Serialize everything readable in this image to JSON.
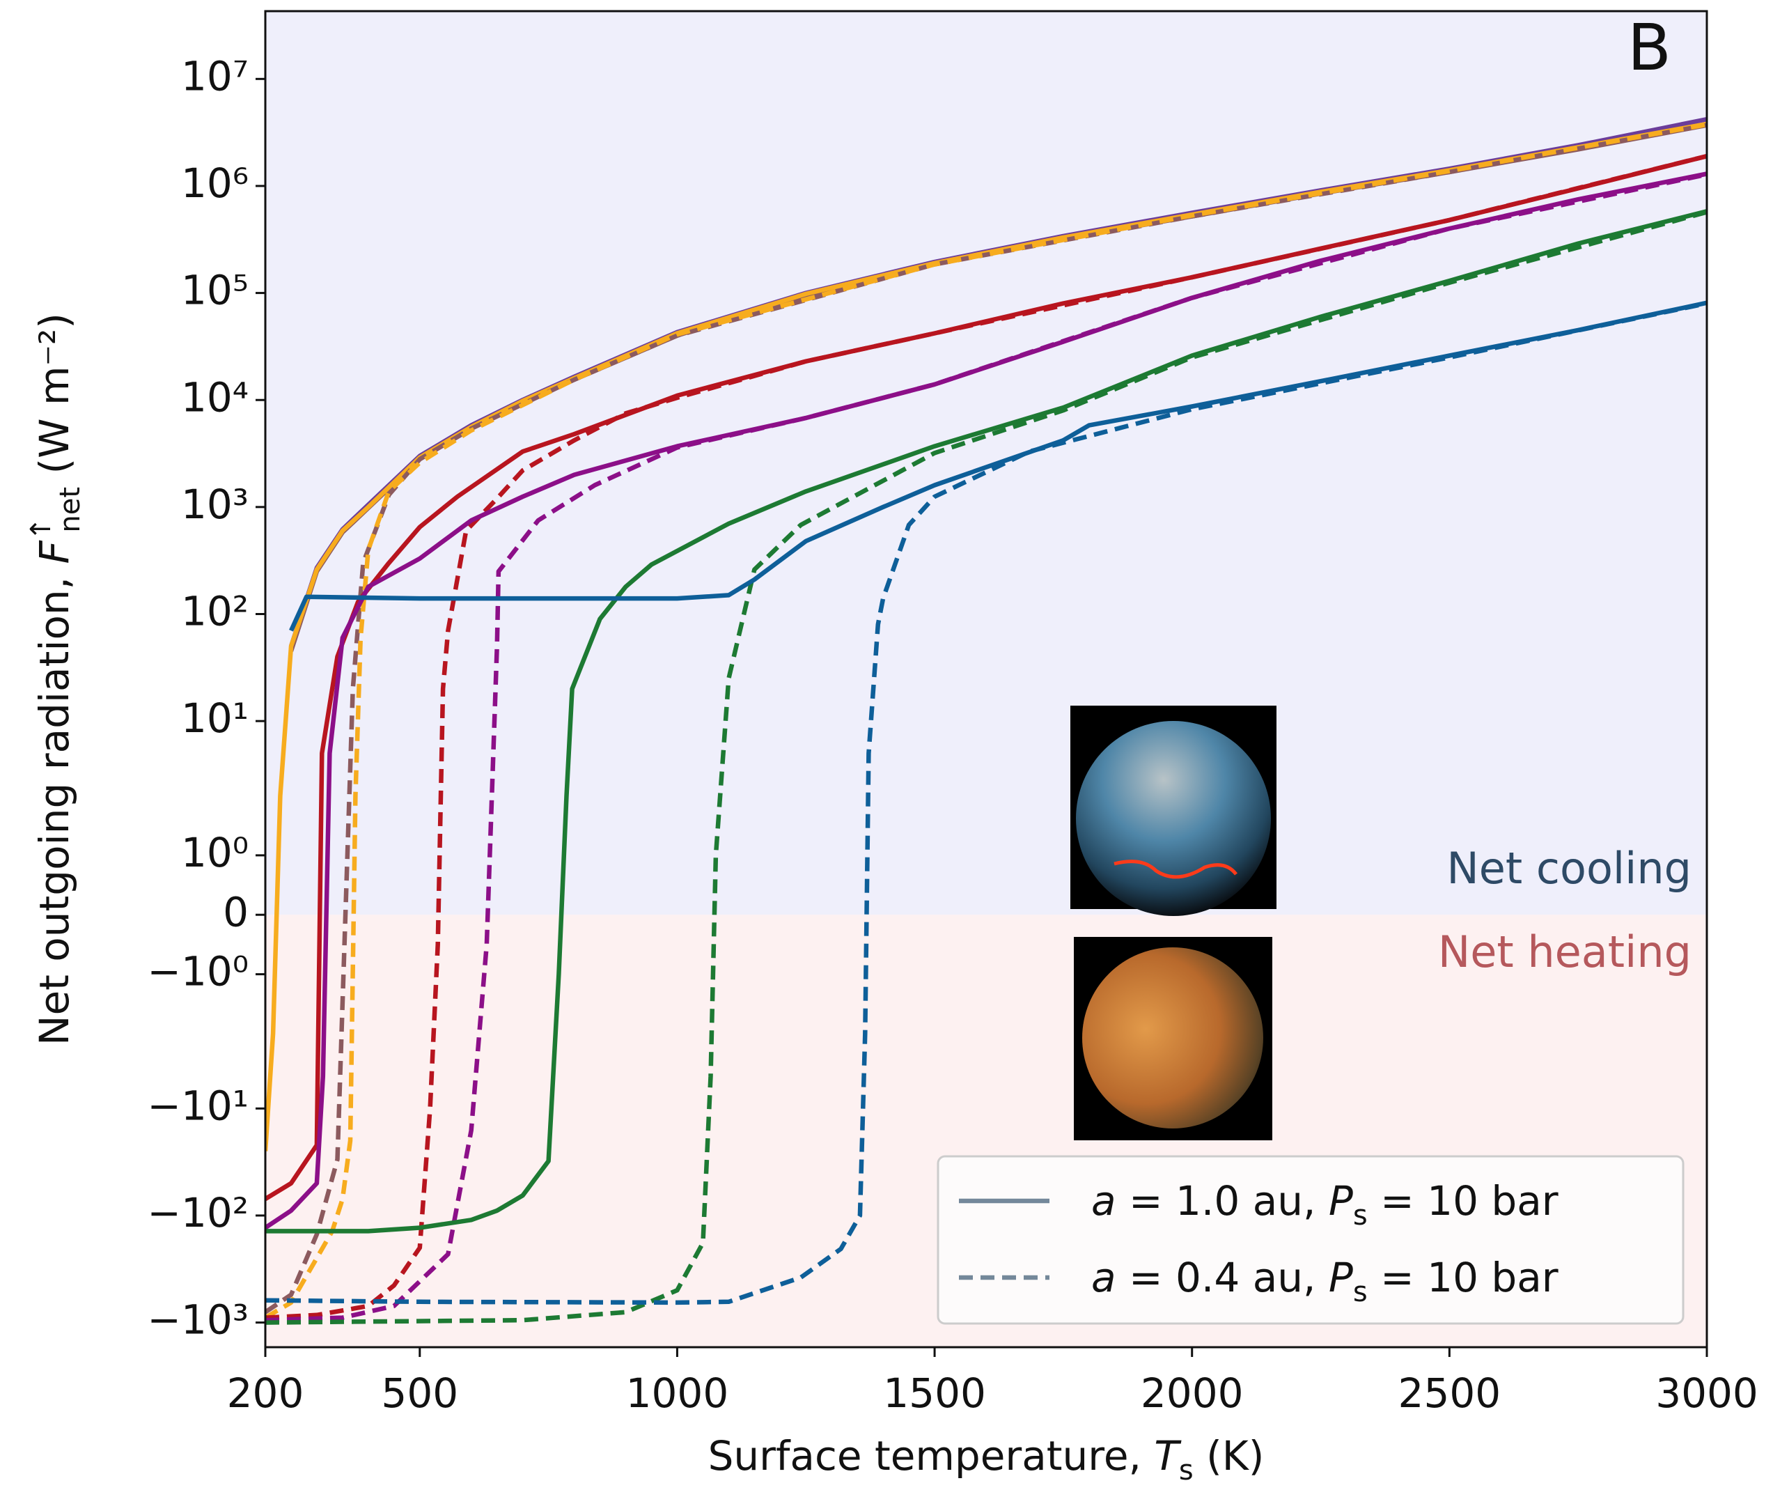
{
  "chart_data": {
    "type": "line",
    "panel_label": "B",
    "xlabel": {
      "text": "Surface temperature, ",
      "symbol": "T",
      "sub": "s",
      "unit": " (K)"
    },
    "ylabel": {
      "text": "Net outgoing radiation, ",
      "symbol": "F",
      "sub": "net",
      "sup": "↑",
      "unit": " (W m⁻²)"
    },
    "xlim": [
      200,
      3000
    ],
    "xticks": [
      200,
      500,
      1000,
      1500,
      2000,
      2500,
      3000
    ],
    "ylim": [
      -1700,
      43000000
    ],
    "yscale": "symlog",
    "linthresh": 2,
    "linscale": 1,
    "yticks": [
      {
        "value": 10000000,
        "label": "10⁷"
      },
      {
        "value": 1000000,
        "label": "10⁶"
      },
      {
        "value": 100000,
        "label": "10⁵"
      },
      {
        "value": 10000,
        "label": "10⁴"
      },
      {
        "value": 1000,
        "label": "10³"
      },
      {
        "value": 100,
        "label": "10²"
      },
      {
        "value": 10,
        "label": "10¹"
      },
      {
        "value": 1,
        "label": "10⁰"
      },
      0,
      {
        "value": -1,
        "label": "−10⁰"
      },
      {
        "value": -10,
        "label": "−10¹"
      },
      {
        "value": -100,
        "label": "−10²"
      },
      {
        "value": -1000,
        "label": "−10³"
      }
    ],
    "regions": [
      {
        "label": "Net cooling",
        "color": "#2e4a66",
        "background": "#efeffb",
        "side": "positive"
      },
      {
        "label": "Net heating",
        "color": "#b5585c",
        "background": "#fdf1f1",
        "side": "negative"
      }
    ],
    "legend_position": "lower right",
    "legend": [
      {
        "style": "solid",
        "color": "#74889a",
        "text": [
          "a",
          " = 1.0 au, ",
          "P",
          "s",
          " = 10 bar"
        ]
      },
      {
        "style": "dashed",
        "color": "#74889a",
        "text": [
          "a",
          " = 0.4 au, ",
          "P",
          "s",
          " = 10 bar"
        ]
      }
    ],
    "series": [
      {
        "color": "#6b3d9a",
        "style": "solid",
        "x": [
          250,
          300,
          350,
          400,
          500,
          600,
          700,
          800,
          1000,
          1250,
          1500,
          1750,
          2000,
          2250,
          2500,
          2750,
          3000
        ],
        "values": [
          50,
          270,
          620,
          1050,
          3000,
          5800,
          10000,
          16500,
          43000,
          100000,
          195000,
          340000,
          560000,
          910000,
          1450000,
          2400000,
          4200000
        ]
      },
      {
        "color": "#8c5a5e",
        "style": "solid",
        "x": [
          250,
          300,
          350,
          400,
          500,
          600,
          700,
          800,
          1000,
          1250,
          1500,
          1750,
          2000,
          2250,
          2500,
          2750,
          3000
        ],
        "values": [
          45,
          250,
          580,
          980,
          2800,
          5400,
          9500,
          15500,
          40000,
          95000,
          185000,
          320000,
          520000,
          850000,
          1350000,
          2200000,
          3700000
        ]
      },
      {
        "color": "#f7ac1e",
        "style": "solid",
        "x": [
          200,
          215,
          229,
          250,
          300,
          350,
          400,
          500,
          600,
          700,
          800,
          1000,
          1250,
          1500,
          1750,
          2000,
          2250,
          2500,
          2750,
          3000
        ],
        "values": [
          -25,
          -2,
          2,
          50,
          260,
          600,
          1000,
          2900,
          5600,
          9800,
          16000,
          42000,
          98000,
          190000,
          330000,
          540000,
          880000,
          1400000,
          2300000,
          3800000
        ]
      },
      {
        "color": "#8c5a5e",
        "style": "dashed",
        "x": [
          200,
          250,
          300,
          340,
          370,
          390,
          440,
          500,
          600,
          800,
          1000,
          1500,
          2000,
          2500,
          3000
        ],
        "values": [
          -800,
          -550,
          -150,
          -30,
          20,
          300,
          1300,
          2800,
          5400,
          15500,
          40000,
          185000,
          520000,
          1350000,
          3700000
        ]
      },
      {
        "color": "#f7ac1e",
        "style": "dashed",
        "x": [
          200,
          250,
          300,
          330,
          350,
          365,
          375,
          385,
          400,
          440,
          500,
          600,
          800,
          1000,
          1500,
          2000,
          2500,
          3000
        ],
        "values": [
          -900,
          -650,
          -250,
          -140,
          -70,
          -20,
          2,
          60,
          400,
          1400,
          2600,
          5200,
          15500,
          41000,
          185000,
          530000,
          1380000,
          3750000
        ]
      },
      {
        "color": "#b8151f",
        "style": "solid",
        "x": [
          200,
          250,
          300,
          310,
          340,
          380,
          440,
          500,
          573,
          700,
          800,
          1000,
          1250,
          1500,
          1750,
          2000,
          2250,
          2500,
          2750,
          3000
        ],
        "values": [
          -70,
          -50,
          -22,
          5,
          40,
          130,
          300,
          650,
          1250,
          3300,
          4800,
          11000,
          23000,
          42000,
          80000,
          140000,
          260000,
          480000,
          950000,
          1900000
        ]
      },
      {
        "color": "#b8151f",
        "style": "dashed",
        "x": [
          200,
          300,
          400,
          450,
          500,
          520,
          535,
          545,
          555,
          590,
          650,
          700,
          800,
          900,
          1000,
          1250,
          1500,
          2000,
          2500,
          3000
        ],
        "values": [
          -900,
          -850,
          -700,
          -450,
          -200,
          -10,
          -0.5,
          20,
          70,
          600,
          1200,
          2200,
          4200,
          7500,
          10500,
          23000,
          42000,
          140000,
          480000,
          1900000
        ]
      },
      {
        "color": "#8c0f88",
        "style": "solid",
        "x": [
          200,
          250,
          300,
          312,
          325,
          350,
          400,
          500,
          600,
          700,
          800,
          1000,
          1250,
          1500,
          1750,
          2000,
          2250,
          2500,
          2750,
          3000
        ],
        "values": [
          -130,
          -90,
          -50,
          -5,
          5,
          60,
          180,
          330,
          750,
          1250,
          2000,
          3700,
          6800,
          14000,
          35000,
          90000,
          200000,
          400000,
          750000,
          1300000
        ]
      },
      {
        "color": "#8c0f88",
        "style": "dashed",
        "x": [
          200,
          350,
          450,
          555,
          600,
          630,
          640,
          650,
          653,
          730,
          840,
          1000,
          1250,
          1500,
          2000,
          2500,
          3000
        ],
        "values": [
          -950,
          -900,
          -700,
          -230,
          -16,
          -0.5,
          2,
          50,
          250,
          750,
          1600,
          3600,
          6800,
          14000,
          90000,
          400000,
          1280000
        ]
      },
      {
        "color": "#1d7a33",
        "style": "solid",
        "x": [
          200,
          400,
          500,
          600,
          650,
          700,
          750,
          770,
          785,
          796,
          850,
          900,
          950,
          1100,
          1250,
          1500,
          1750,
          2000,
          2250,
          2500,
          2750,
          3000
        ],
        "values": [
          -140,
          -140,
          -130,
          -110,
          -90,
          -65,
          -31,
          -1,
          2,
          20,
          90,
          180,
          290,
          700,
          1400,
          3700,
          8500,
          26000,
          60000,
          130000,
          290000,
          580000
        ]
      },
      {
        "color": "#1d7a33",
        "style": "dashed",
        "x": [
          200,
          700,
          900,
          1000,
          1050,
          1065,
          1075,
          1100,
          1150,
          1240,
          1500,
          1750,
          2000,
          2500,
          3000
        ],
        "values": [
          -1000,
          -950,
          -800,
          -500,
          -180,
          -5,
          1,
          25,
          260,
          680,
          3200,
          8000,
          25000,
          125000,
          570000
        ]
      },
      {
        "color": "#0e5f99",
        "style": "solid",
        "x": [
          250,
          280,
          500,
          800,
          1000,
          1100,
          1150,
          1250,
          1400,
          1500,
          1750,
          1800,
          2000,
          2250,
          2500,
          2750,
          3000
        ],
        "values": [
          70,
          145,
          140,
          140,
          140,
          150,
          210,
          480,
          1000,
          1600,
          4200,
          5800,
          8700,
          15000,
          26000,
          45000,
          81000
        ]
      },
      {
        "color": "#0e5f99",
        "style": "dashed",
        "x": [
          200,
          500,
          1000,
          1100,
          1240,
          1318,
          1355,
          1365,
          1372,
          1390,
          1400,
          1450,
          1500,
          1684,
          2000,
          2500,
          3000
        ],
        "values": [
          -620,
          -640,
          -650,
          -640,
          -380,
          -205,
          -100,
          -2,
          5,
          80,
          140,
          680,
          1250,
          3300,
          8200,
          25000,
          80000
        ]
      }
    ]
  }
}
